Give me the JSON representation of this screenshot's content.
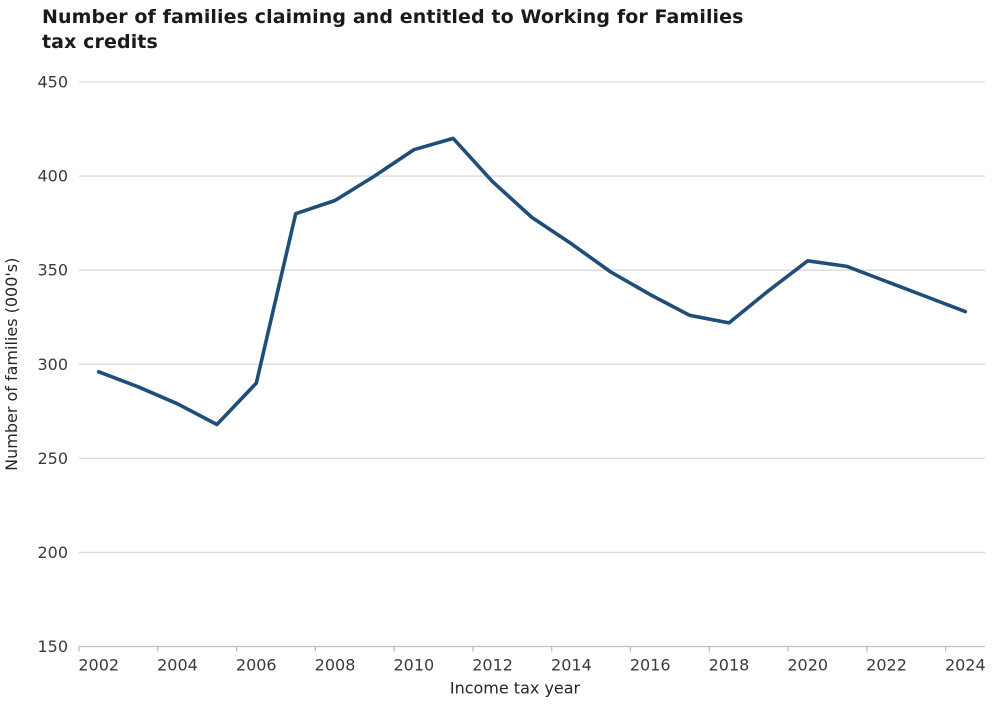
{
  "title": {
    "lines": [
      "Number of families claiming and entitled to Working for Families",
      "tax credits"
    ]
  },
  "chart_data": {
    "type": "line",
    "title": "Number of families claiming and entitled to Working for Families tax credits",
    "xlabel": "Income tax year",
    "ylabel": "Number of families (000's)",
    "x": [
      2002,
      2003,
      2004,
      2005,
      2006,
      2007,
      2008,
      2009,
      2010,
      2011,
      2012,
      2013,
      2014,
      2015,
      2016,
      2017,
      2018,
      2019,
      2020,
      2021,
      2022,
      2023,
      2024
    ],
    "values": [
      296,
      288,
      279,
      268,
      290,
      380,
      387,
      400,
      414,
      420,
      397,
      378,
      364,
      349,
      337,
      326,
      322,
      339,
      355,
      352,
      344,
      336,
      328
    ],
    "ylim": [
      150,
      450
    ],
    "ytick_step": 50,
    "ytick_labels": [
      150,
      200,
      250,
      300,
      350,
      400,
      450
    ],
    "xtick_labels": [
      2002,
      2004,
      2006,
      2008,
      2010,
      2012,
      2014,
      2016,
      2018,
      2020,
      2022,
      2024
    ],
    "xtick_label_step": 2,
    "grid": "horizontal-only",
    "legend_position": "none",
    "line_color": "#1F4E79",
    "gridline_color": "#D9D9D9",
    "axis_color": "#BFBFBF",
    "tick_label_color": "#3B3B3B",
    "axis_title_color": "#262626",
    "title_color": "#1A1A1A",
    "background_color": "#FFFFFF"
  }
}
